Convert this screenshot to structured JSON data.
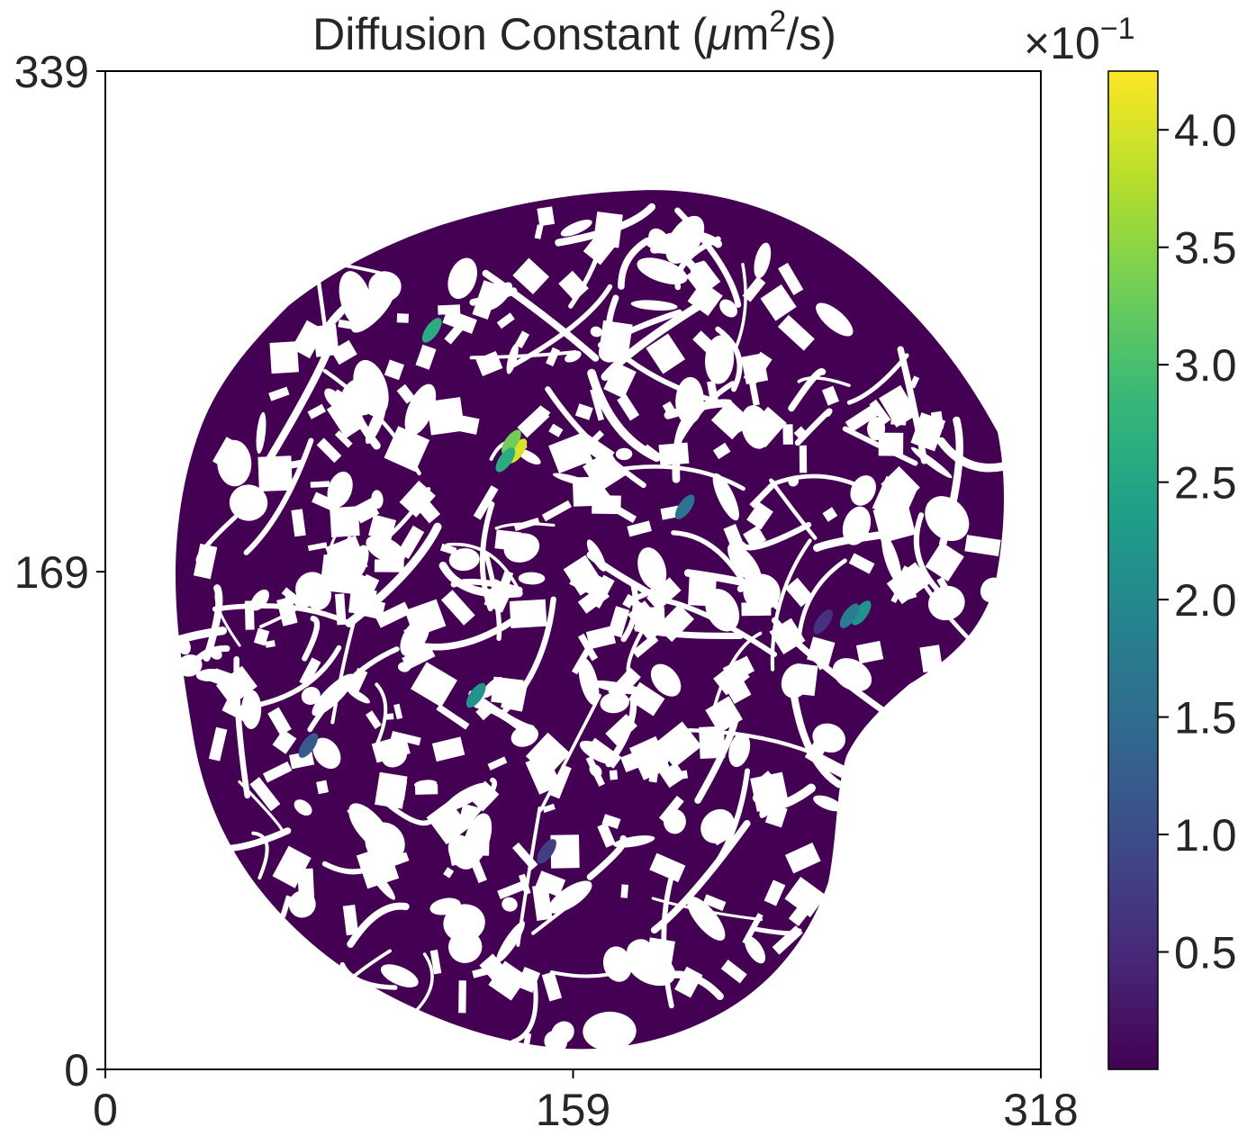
{
  "chart_data": {
    "type": "heatmap",
    "title": "Diffusion Constant (μm²/s)",
    "title_parts": {
      "prefix": "Diffusion Constant (",
      "mu": "μ",
      "unit": "m",
      "superscript": "2",
      "suffix": "/s)"
    },
    "xlabel": "",
    "ylabel": "",
    "x_ticks": [
      0,
      159,
      318
    ],
    "y_ticks": [
      0,
      169,
      339
    ],
    "xlim": [
      0,
      318
    ],
    "ylim": [
      0,
      339
    ],
    "grid": false,
    "colormap": "viridis",
    "colormap_stops": [
      "#440154",
      "#482878",
      "#3e4989",
      "#31688e",
      "#26828e",
      "#1f9e89",
      "#35b779",
      "#6ece58",
      "#b5de2b",
      "#fde725"
    ],
    "background_color": "#ffffff",
    "colorbar": {
      "range": [
        0.0,
        4.25
      ],
      "ticks": [
        0.5,
        1.0,
        1.5,
        2.0,
        2.5,
        3.0,
        3.5,
        4.0
      ],
      "tick_labels": [
        "0.5",
        "1.0",
        "1.5",
        "2.0",
        "2.5",
        "3.0",
        "3.5",
        "4.0"
      ],
      "offset_text": {
        "times": "×10",
        "exponent": "−1"
      }
    },
    "dominant_value": 0.0,
    "hotspots": [
      {
        "x": 140,
        "y": 210,
        "value": 4.0
      },
      {
        "x": 138,
        "y": 213,
        "value": 3.3
      },
      {
        "x": 136,
        "y": 207,
        "value": 2.6
      },
      {
        "x": 111,
        "y": 251,
        "value": 2.6
      },
      {
        "x": 257,
        "y": 155,
        "value": 2.2
      },
      {
        "x": 253,
        "y": 154,
        "value": 1.8
      },
      {
        "x": 126,
        "y": 127,
        "value": 2.2
      },
      {
        "x": 197,
        "y": 191,
        "value": 1.6
      },
      {
        "x": 69,
        "y": 110,
        "value": 1.2
      },
      {
        "x": 150,
        "y": 74,
        "value": 0.8
      },
      {
        "x": 244,
        "y": 152,
        "value": 0.6
      }
    ]
  }
}
